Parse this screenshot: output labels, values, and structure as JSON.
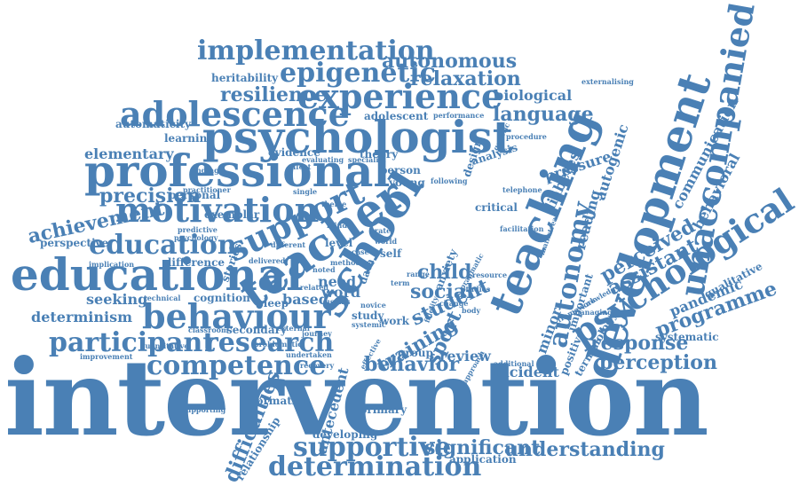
{
  "accent_color": "#4a80b5",
  "words": {
    "intervention": "intervention",
    "school": "school",
    "teaching": "teaching",
    "development": "development",
    "psychologist": "psychologist",
    "educational": "educational",
    "professional": "professional",
    "teacher": "teacher",
    "experience": "experience",
    "behaviour": "behaviour",
    "support": "support",
    "motivation": "motivation",
    "psychological": "psychological",
    "unaccompanied": "unaccompanied",
    "adolescence": "adolescence",
    "implementation": "implementation",
    "education": "education",
    "determination": "determination",
    "supportive": "supportive",
    "participant": "participant",
    "research": "research",
    "competence": "competence",
    "autonomy": "autonomy",
    "impact": "impact",
    "epigenetic": "epigenetic",
    "autonomous": "autonomous",
    "relaxation": "relaxation",
    "resilience": "resilience",
    "language": "language",
    "student": "student",
    "perceived": "perceived",
    "assistant": "assistant",
    "programme": "programme",
    "response": "response",
    "perception": "perception",
    "behavior": "behavior",
    "significant": "significant",
    "understanding": "understanding",
    "difficulties": "difficulties",
    "precision": "precision",
    "achievement": "achievement",
    "elementary": "elementary",
    "biological": "biological",
    "child": "child",
    "training": "training",
    "social": "social",
    "determinism": "determinism",
    "seeking": "seeking",
    "based": "based",
    "need": "need",
    "word": "word",
    "sport": "sport",
    "review": "review",
    "minor": "minor",
    "reading": "reading",
    "autogenic": "autogenic",
    "pressure": "pressure",
    "diabetes": "diabetes",
    "communication": "communication",
    "behavioral": "behavioral",
    "pandemic": "pandemic",
    "qualitative": "qualitative",
    "systematic": "systematic",
    "incident": "incident",
    "positive": "positive",
    "important": "important",
    "terminology": "terminology",
    "relationship": "relationship",
    "antecedent": "antecedent",
    "primary": "primary",
    "developing": "developing",
    "application": "application",
    "information": "information",
    "supporting": "supporting",
    "recovery": "recovery",
    "improvement": "improvement",
    "quantitative": "quantitative",
    "classroom": "classroom",
    "secondary": "secondary",
    "cognition": "cognition",
    "technical": "technical",
    "implication": "implication",
    "difference": "difference",
    "perspective": "perspective",
    "exemplar": "exemplar",
    "stories": "stories",
    "personal": "personal",
    "single": "single",
    "finding": "finding",
    "evidence": "evidence",
    "theory": "theory",
    "person": "person",
    "young": "young",
    "anxiety": "anxiety",
    "fidelity": "fidelity",
    "design": "design",
    "analysis": "analysis",
    "learning": "learning",
    "automaticity": "automaticity",
    "heritability": "heritability",
    "adolescent": "adolescent",
    "sleep": "sleep",
    "level": "level",
    "data": "data",
    "self": "self",
    "group": "group",
    "work": "work",
    "study": "study",
    "critical": "critical",
    "mainstream": "mainstream",
    "resource": "resource",
    "change": "change",
    "range": "range",
    "term": "term",
    "genetic": "genetic",
    "externalising": "externalising",
    "evaluating": "evaluating",
    "effect": "effect",
    "following": "following",
    "framework": "framework",
    "managing": "managing",
    "knowledge": "knowledge",
    "predictive": "predictive",
    "practitioner": "practitioner",
    "psychology": "psychology",
    "different": "different",
    "delivered": "delivered",
    "related": "related",
    "novice": "novice",
    "external": "external",
    "problematic": "problematic",
    "undertaken": "undertaken",
    "effective": "effective",
    "approach": "approach",
    "additional": "additional",
    "studies": "studies",
    "theme": "theme",
    "mind": "mind",
    "body": "body",
    "world": "world",
    "rate": "rate",
    "method": "method",
    "case": "case",
    "systemic": "systemic",
    "journey": "journey",
    "telephone": "telephone",
    "performance": "performance",
    "procedure": "procedure",
    "specialist": "specialist",
    "usams": "usams",
    "noted": "noted",
    "facilitation": "facilitation",
    "pragmatic": "pragmatic"
  }
}
